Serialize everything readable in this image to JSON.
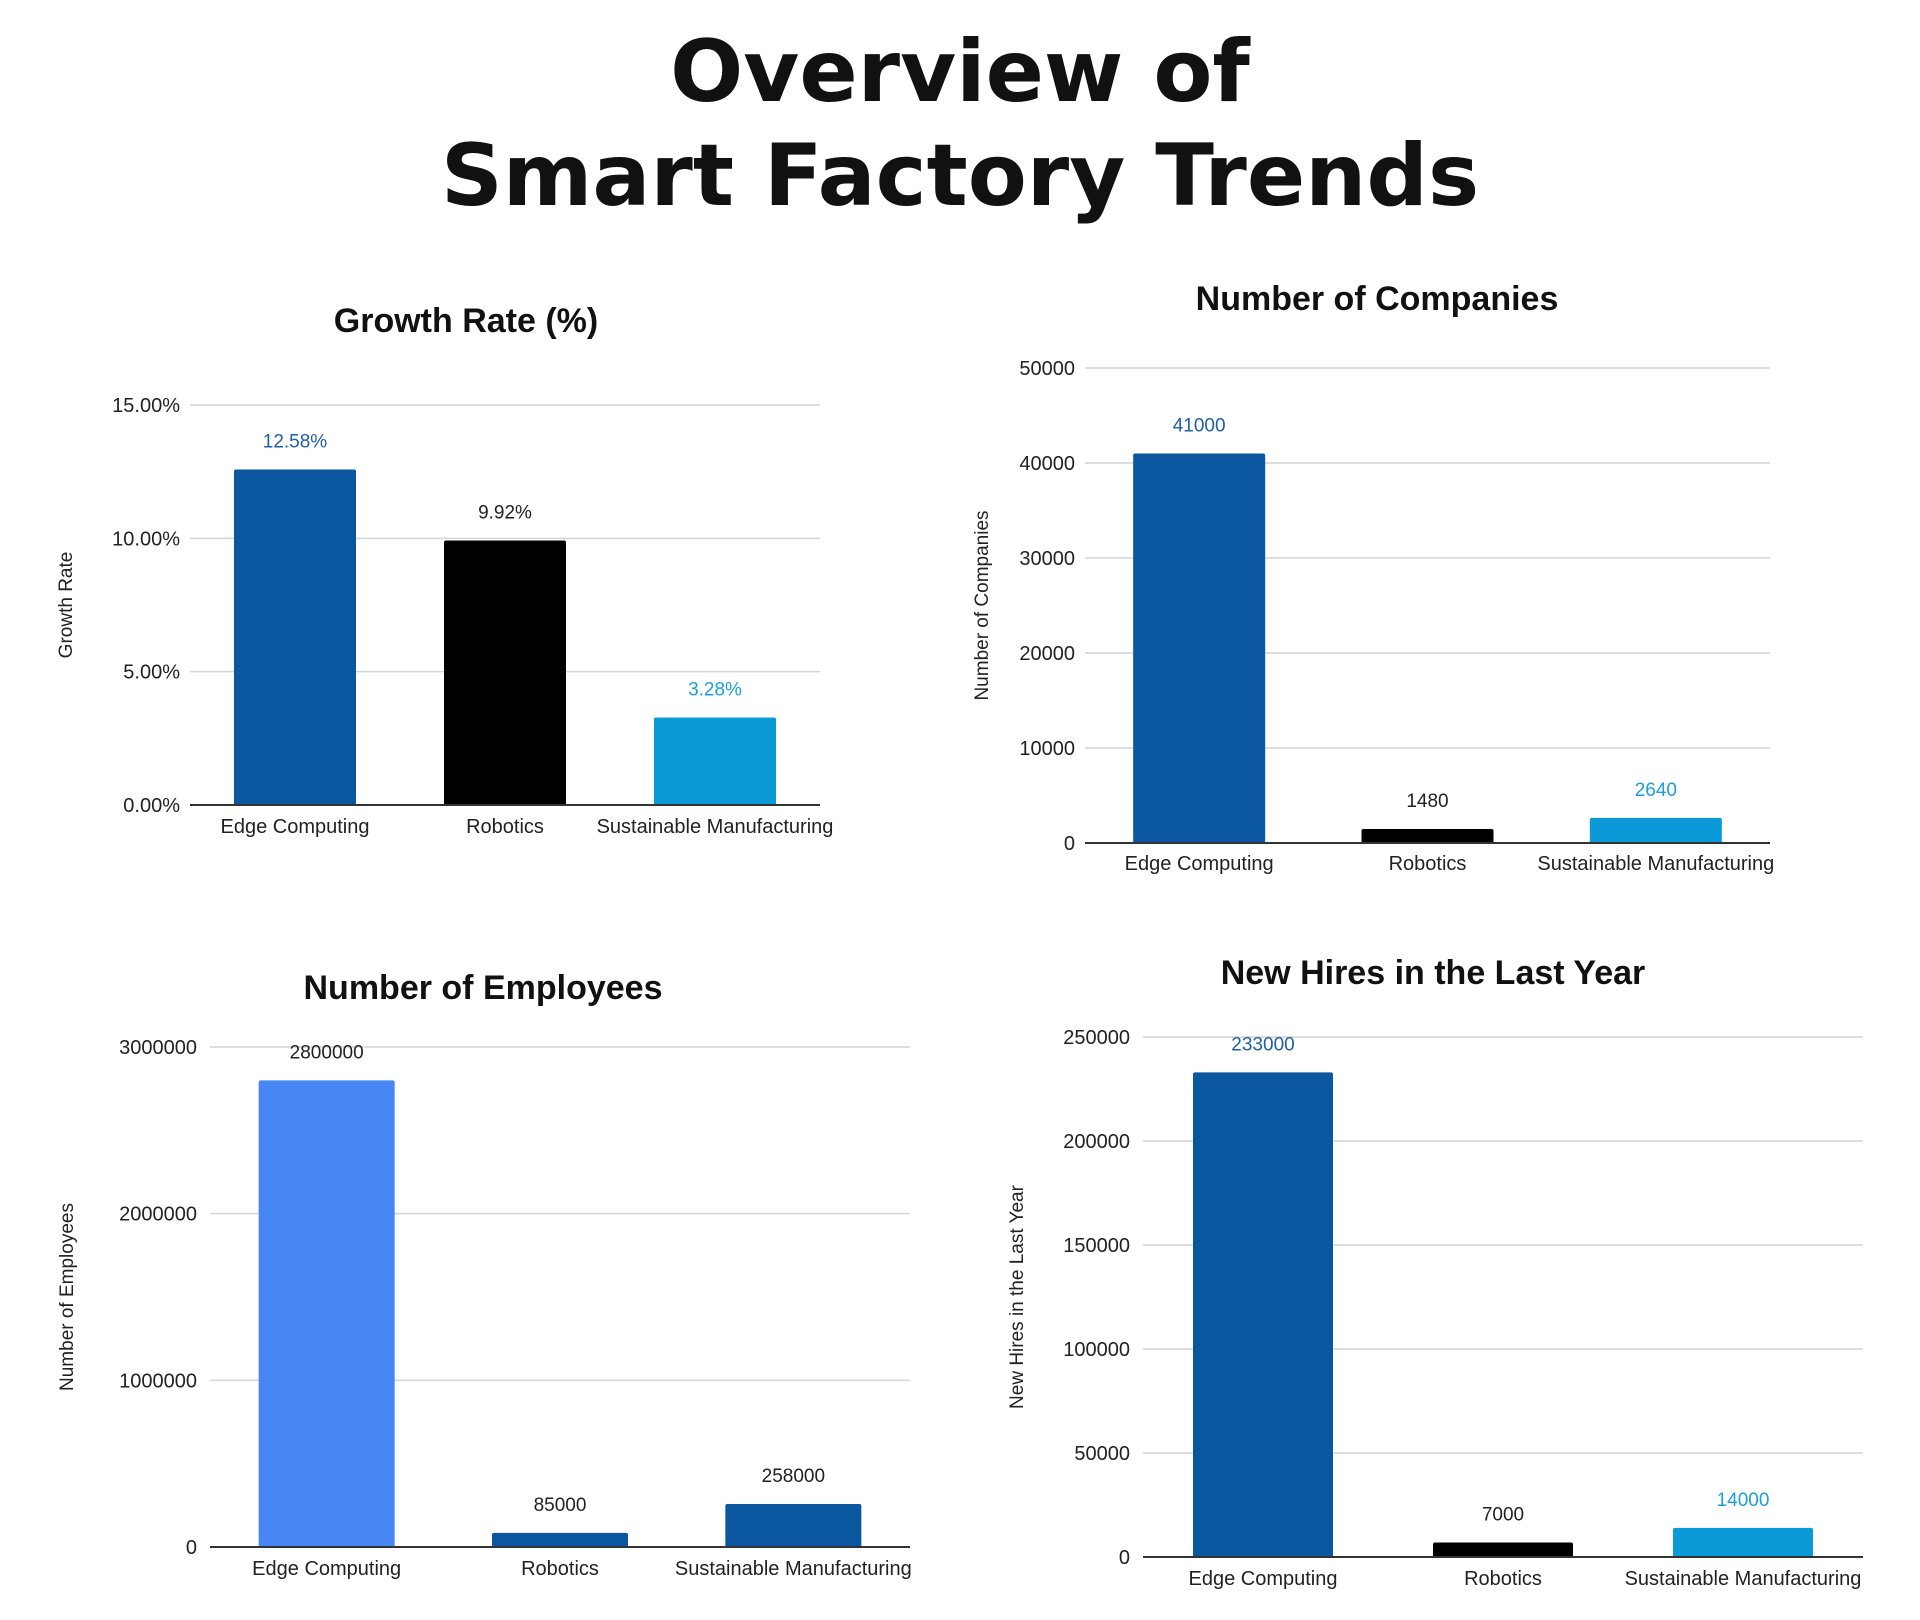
{
  "page": {
    "title_line1": "Overview of",
    "title_line2": "Smart Factory Trends"
  },
  "colors": {
    "dark_blue": "#0b579f",
    "black": "#000000",
    "light_blue": "#0b9ad7",
    "bright_blue": "#4787f3",
    "label_dark_blue": "#1f5fa8",
    "label_light_blue": "#1a9fdc",
    "label_black": "#222222"
  },
  "chart_data": [
    {
      "type": "bar",
      "title": "Growth Rate (%)",
      "ylabel": "Growth Rate",
      "xlabel": "",
      "categories": [
        "Edge Computing",
        "Robotics",
        "Sustainable Manufacturing"
      ],
      "values": [
        12.58,
        9.92,
        3.28
      ],
      "data_labels": [
        "12.58%",
        "9.92%",
        "3.28%"
      ],
      "bar_colors": [
        "#0b579f",
        "#000000",
        "#0b9ad7"
      ],
      "label_colors": [
        "#1f5fa8",
        "#222222",
        "#1a9fdc"
      ],
      "ylim": [
        0,
        15
      ],
      "yticks": [
        0,
        5,
        10,
        15
      ],
      "ytick_labels": [
        "0.00%",
        "5.00%",
        "10.00%",
        "15.00%"
      ],
      "grid": true,
      "legend": "none"
    },
    {
      "type": "bar",
      "title": "Number of Companies",
      "ylabel": "Number of Companies",
      "xlabel": "",
      "categories": [
        "Edge Computing",
        "Robotics",
        "Sustainable Manufacturing"
      ],
      "values": [
        41000,
        1480,
        2640
      ],
      "data_labels": [
        "41000",
        "1480",
        "2640"
      ],
      "bar_colors": [
        "#0b579f",
        "#000000",
        "#0b9ad7"
      ],
      "label_colors": [
        "#1f5fa8",
        "#222222",
        "#1a9fdc"
      ],
      "ylim": [
        0,
        50000
      ],
      "yticks": [
        0,
        10000,
        20000,
        30000,
        40000,
        50000
      ],
      "ytick_labels": [
        "0",
        "10000",
        "20000",
        "30000",
        "40000",
        "50000"
      ],
      "grid": true,
      "legend": "none"
    },
    {
      "type": "bar",
      "title": "Number of Employees",
      "ylabel": "Number of Employees",
      "xlabel": "",
      "categories": [
        "Edge Computing",
        "Robotics",
        "Sustainable Manufacturing"
      ],
      "values": [
        2800000,
        85000,
        258000
      ],
      "data_labels": [
        "2800000",
        "85000",
        "258000"
      ],
      "bar_colors": [
        "#4787f3",
        "#0b579f",
        "#0b579f"
      ],
      "label_colors": [
        "#222222",
        "#222222",
        "#222222"
      ],
      "ylim": [
        0,
        3000000
      ],
      "yticks": [
        0,
        1000000,
        2000000,
        3000000
      ],
      "ytick_labels": [
        "0",
        "1000000",
        "2000000",
        "3000000"
      ],
      "grid": true,
      "legend": "none"
    },
    {
      "type": "bar",
      "title": "New Hires in the Last Year",
      "ylabel": "New Hires in the Last Year",
      "xlabel": "",
      "categories": [
        "Edge Computing",
        "Robotics",
        "Sustainable Manufacturing"
      ],
      "values": [
        233000,
        7000,
        14000
      ],
      "data_labels": [
        "233000",
        "7000",
        "14000"
      ],
      "bar_colors": [
        "#0b579f",
        "#000000",
        "#0b9ad7"
      ],
      "label_colors": [
        "#1f5fa8",
        "#222222",
        "#1a9fdc"
      ],
      "ylim": [
        0,
        250000
      ],
      "yticks": [
        0,
        50000,
        100000,
        150000,
        200000,
        250000
      ],
      "ytick_labels": [
        "0",
        "50000",
        "100000",
        "150000",
        "200000",
        "250000"
      ],
      "grid": true,
      "legend": "none"
    }
  ]
}
